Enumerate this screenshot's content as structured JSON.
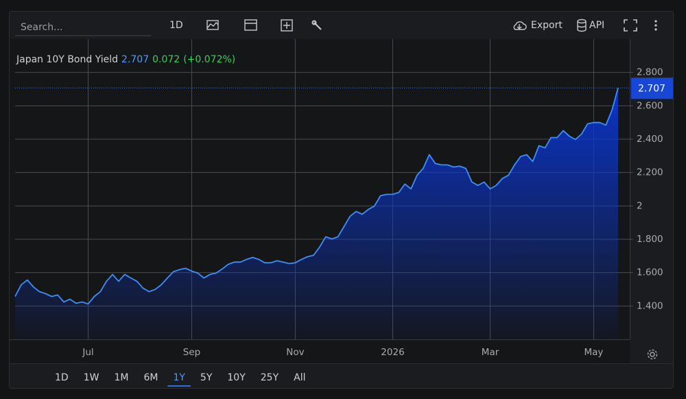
{
  "toolbar": {
    "search_placeholder": "Search...",
    "interval": "1D",
    "export": "Export",
    "api": "API"
  },
  "legend": {
    "name": "Japan 10Y Bond Yield",
    "value": 2.707,
    "change": 0.072,
    "change_pct": "(+0.072%)"
  },
  "chart_data": {
    "type": "area",
    "color": "#3d8fff",
    "grid": true,
    "values": [
      1.457,
      1.527,
      1.556,
      1.515,
      1.486,
      1.474,
      1.457,
      1.466,
      1.424,
      1.441,
      1.416,
      1.424,
      1.412,
      1.457,
      1.486,
      1.548,
      1.589,
      1.548,
      1.589,
      1.568,
      1.548,
      1.507,
      1.486,
      1.499,
      1.527,
      1.568,
      1.605,
      1.618,
      1.626,
      1.609,
      1.597,
      1.568,
      1.589,
      1.597,
      1.622,
      1.65,
      1.663,
      1.663,
      1.679,
      1.691,
      1.679,
      1.659,
      1.659,
      1.671,
      1.663,
      1.654,
      1.659,
      1.679,
      1.695,
      1.704,
      1.753,
      1.815,
      1.802,
      1.815,
      1.876,
      1.938,
      1.967,
      1.95,
      1.979,
      1.999,
      2.061,
      2.069,
      2.069,
      2.081,
      2.131,
      2.102,
      2.184,
      2.225,
      2.307,
      2.254,
      2.246,
      2.246,
      2.233,
      2.238,
      2.225,
      2.143,
      2.123,
      2.143,
      2.102,
      2.123,
      2.164,
      2.184,
      2.246,
      2.296,
      2.307,
      2.266,
      2.361,
      2.348,
      2.41,
      2.41,
      2.451,
      2.418,
      2.398,
      2.431,
      2.492,
      2.5,
      2.5,
      2.484,
      2.574,
      2.707
    ],
    "xlim": [
      0,
      101
    ],
    "xticks": [
      {
        "value": 12,
        "label": "Jul"
      },
      {
        "value": 29,
        "label": "Sep"
      },
      {
        "value": 46,
        "label": "Nov"
      },
      {
        "value": 62,
        "label": "2026"
      },
      {
        "value": 78,
        "label": "Mar"
      },
      {
        "value": 95,
        "label": "May"
      }
    ],
    "ylim": [
      1.2,
      3.0
    ],
    "yticks": [
      {
        "value": 1.4,
        "label": "1.400"
      },
      {
        "value": 1.6,
        "label": "1.600"
      },
      {
        "value": 1.8,
        "label": "1.800"
      },
      2,
      {
        "value": 2.2,
        "label": "2.200"
      },
      {
        "value": 2.4,
        "label": "2.400"
      },
      {
        "value": 2.6,
        "label": "2.600"
      },
      {
        "value": 2.8,
        "label": "2.800"
      }
    ]
  },
  "range_buttons": [
    "1D",
    "1W",
    "1M",
    "6M",
    "1Y",
    "5Y",
    "10Y",
    "25Y",
    "All"
  ],
  "active_range_index": 4
}
